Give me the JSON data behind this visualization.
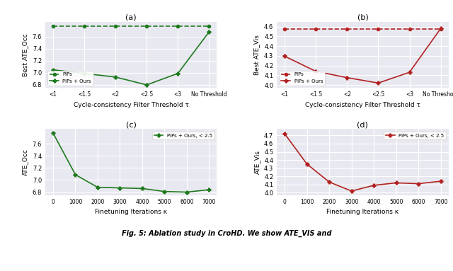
{
  "subplot_a": {
    "title": "(a)",
    "xlabel": "Cycle-consistency Filter Threshold τ",
    "ylabel": "Best ATE_Occ",
    "x_labels": [
      "<1",
      "<1.5",
      "<2",
      "<2.5",
      "<3",
      "No Threshold"
    ],
    "pips_y": [
      7.78,
      7.78,
      7.78,
      7.78,
      7.78,
      7.78
    ],
    "ours_y": [
      7.05,
      6.99,
      6.93,
      6.8,
      6.99,
      7.68
    ],
    "ylim": [
      6.75,
      7.85
    ],
    "yticks": [
      6.8,
      7.0,
      7.2,
      7.4,
      7.6
    ]
  },
  "subplot_b": {
    "title": "(b)",
    "xlabel": "Cycle-consistency Filter Threshold τ",
    "ylabel": "Best ATE_Vis",
    "x_labels": [
      "<1",
      "<1.5",
      "<2",
      "<2.5",
      "<3",
      "No Threshold"
    ],
    "pips_y": [
      4.575,
      4.575,
      4.575,
      4.575,
      4.575,
      4.575
    ],
    "ours_y": [
      4.295,
      4.14,
      4.075,
      4.02,
      4.13,
      4.58
    ],
    "ylim": [
      3.97,
      4.65
    ],
    "yticks": [
      4.0,
      4.1,
      4.2,
      4.3,
      4.4,
      4.5,
      4.6
    ]
  },
  "subplot_c": {
    "title": "(c)",
    "xlabel": "Finetuning Iterations κ",
    "ylabel": "ATE_Occ",
    "x_vals": [
      0,
      1000,
      2000,
      3000,
      4000,
      5000,
      6000,
      7000
    ],
    "ours_y": [
      7.78,
      7.09,
      6.88,
      6.87,
      6.86,
      6.81,
      6.8,
      6.84
    ],
    "ylim": [
      6.75,
      7.85
    ],
    "yticks": [
      6.8,
      7.0,
      7.2,
      7.4,
      7.6
    ]
  },
  "subplot_d": {
    "title": "(d)",
    "xlabel": "Finetuning Iterations κ",
    "ylabel": "ATE_Vis",
    "x_vals": [
      0,
      1000,
      2000,
      3000,
      4000,
      5000,
      6000,
      7000
    ],
    "ours_y": [
      4.72,
      4.35,
      4.13,
      4.02,
      4.09,
      4.12,
      4.11,
      4.14
    ],
    "ylim": [
      3.97,
      4.78
    ],
    "yticks": [
      4.0,
      4.1,
      4.2,
      4.3,
      4.4,
      4.5,
      4.6,
      4.7
    ]
  },
  "green_color": "#1f7a1f",
  "red_color": "#b22222",
  "bg_color": "#e8e8f0",
  "grid_color": "white",
  "fig_bg": "white",
  "legend_a_pips": "PIPs",
  "legend_a_ours": "PIPs + Ours",
  "legend_b_pips": "PIPs",
  "legend_b_ours": "PIPs + Ours",
  "legend_c": "PIPs + Ours, < 2.5",
  "legend_d": "PIPs + Ours, < 2.5"
}
